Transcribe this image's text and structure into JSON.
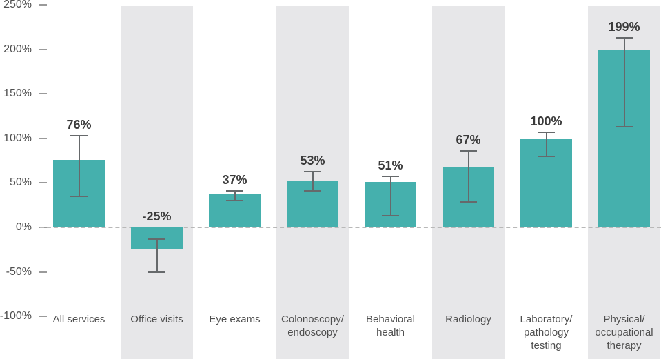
{
  "colors": {
    "bar": "#45b0ad",
    "band": "#e7e7e9",
    "error_bar": "#66696b",
    "zero_line": "#b8b8b8",
    "value_label": "#3b3b3b",
    "axis_label": "#4f4f4f",
    "category_label": "#4f4f4f",
    "tick_mark": "#9a9a9a",
    "background": "#ffffff"
  },
  "chart_data": {
    "type": "bar",
    "title": "",
    "xlabel": "",
    "ylabel": "",
    "ylim": [
      -100,
      250
    ],
    "grid": false,
    "legend": false,
    "zero_line_style": "dashed",
    "y_ticks": [
      {
        "value": 250,
        "label": "250%"
      },
      {
        "value": 200,
        "label": "200%"
      },
      {
        "value": 150,
        "label": "150%"
      },
      {
        "value": 100,
        "label": "100%"
      },
      {
        "value": 50,
        "label": "50%"
      },
      {
        "value": 0,
        "label": "0%"
      },
      {
        "value": -50,
        "label": "-50%"
      },
      {
        "value": -100,
        "label": "-100%"
      }
    ],
    "categories": [
      "All services",
      "Office visits",
      "Eye exams",
      "Colonoscopy/\nendoscopy",
      "Behavioral\nhealth",
      "Radiology",
      "Laboratory/\npathology\ntesting",
      "Physical/\noccupational\ntherapy"
    ],
    "values": [
      76,
      -25,
      37,
      53,
      51,
      67,
      100,
      199
    ],
    "value_labels": [
      "76%",
      "-25%",
      "37%",
      "53%",
      "51%",
      "67%",
      "100%",
      "199%"
    ],
    "error_low": [
      35,
      -50,
      30,
      41,
      13,
      29,
      80,
      113
    ],
    "error_high": [
      103,
      -13,
      41,
      63,
      57,
      86,
      107,
      213
    ],
    "shaded_columns": [
      1,
      3,
      5,
      7
    ]
  }
}
